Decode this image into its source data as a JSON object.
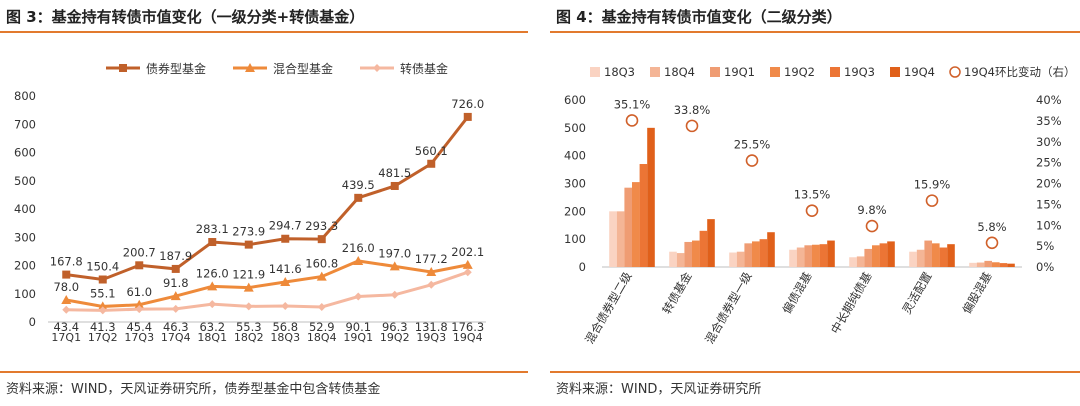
{
  "left": {
    "title": "图 3：基金持有转债市值变化（一级分类+转债基金）",
    "source": "资料来源：WIND，天风证券研究所，债券型基金中包含转债基金",
    "chart_data": {
      "type": "line",
      "title": "",
      "categories": [
        "17Q1",
        "17Q2",
        "17Q3",
        "17Q4",
        "18Q1",
        "18Q2",
        "18Q3",
        "18Q4",
        "19Q1",
        "19Q2",
        "19Q3",
        "19Q4"
      ],
      "ylim": [
        0,
        800
      ],
      "yticks": [
        0,
        100,
        200,
        300,
        400,
        500,
        600,
        700,
        800
      ],
      "legend_position": "top",
      "series": [
        {
          "name": "债券型基金",
          "color": "#c0602a",
          "marker": "square",
          "values": [
            167.8,
            150.4,
            200.7,
            187.9,
            283.1,
            273.9,
            294.7,
            293.3,
            439.5,
            481.5,
            560.1,
            726.0
          ],
          "labels": [
            "167.8",
            "150.4",
            "200.7",
            "187.9",
            "283.1",
            "273.9",
            "294.7",
            "293.3",
            "439.5",
            "481.5",
            "560.1",
            "726.0"
          ]
        },
        {
          "name": "混合型基金",
          "color": "#ee8a3a",
          "marker": "triangle",
          "values": [
            78.0,
            55.1,
            61.0,
            91.8,
            126.0,
            121.9,
            141.6,
            160.8,
            216.0,
            197.0,
            177.2,
            202.1
          ],
          "labels": [
            "78.0",
            "55.1",
            "61.0",
            "91.8",
            "126.0",
            "121.9",
            "141.6",
            "160.8",
            "216.0",
            "197.0",
            "177.2",
            "202.1"
          ]
        },
        {
          "name": "转债基金",
          "color": "#f5b8a0",
          "marker": "diamond",
          "values": [
            43.4,
            41.3,
            45.4,
            46.3,
            63.2,
            55.3,
            56.8,
            52.9,
            90.1,
            96.3,
            131.8,
            176.3
          ],
          "labels": [
            "43.4",
            "41.3",
            "45.4",
            "46.3",
            "63.2",
            "55.3",
            "56.8",
            "52.9",
            "90.1",
            "96.3",
            "131.8",
            "176.3"
          ]
        }
      ]
    }
  },
  "right": {
    "title": "图 4：基金持有转债市值变化（二级分类）",
    "source": "资料来源：WIND，天风证券研究所",
    "chart_data": {
      "type": "bar",
      "title": "",
      "categories": [
        "混合债券型二级",
        "转债基金",
        "混合债券型一级",
        "偏债混基",
        "中长期纯债基",
        "灵活配置",
        "偏股混基"
      ],
      "ylim": [
        0,
        600
      ],
      "yticks": [
        0,
        100,
        200,
        300,
        400,
        500,
        600
      ],
      "y2lim": [
        0,
        40
      ],
      "y2ticks": [
        "0%",
        "5%",
        "10%",
        "15%",
        "20%",
        "25%",
        "30%",
        "35%",
        "40%"
      ],
      "legend_position": "top",
      "series": [
        {
          "name": "18Q3",
          "color": "#fad3c2",
          "values": [
            200,
            55,
            52,
            62,
            35,
            55,
            15
          ]
        },
        {
          "name": "18Q4",
          "color": "#f4b596",
          "values": [
            200,
            50,
            55,
            70,
            38,
            62,
            16
          ]
        },
        {
          "name": "19Q1",
          "color": "#ef9c73",
          "values": [
            285,
            90,
            85,
            78,
            65,
            95,
            22
          ]
        },
        {
          "name": "19Q2",
          "color": "#f08a4a",
          "values": [
            305,
            95,
            92,
            80,
            78,
            85,
            17
          ]
        },
        {
          "name": "19Q3",
          "color": "#ec7535",
          "values": [
            370,
            130,
            100,
            82,
            85,
            70,
            14
          ]
        },
        {
          "name": "19Q4",
          "color": "#e0601a",
          "values": [
            500,
            172,
            125,
            95,
            92,
            82,
            12
          ]
        }
      ],
      "secondary": {
        "name": "19Q4环比变动（右）",
        "color": "#d0602a",
        "values": [
          35.1,
          33.8,
          25.5,
          13.5,
          9.8,
          15.9,
          5.8
        ],
        "labels": [
          "35.1%",
          "33.8%",
          "25.5%",
          "13.5%",
          "9.8%",
          "15.9%",
          "5.8%"
        ]
      }
    }
  }
}
